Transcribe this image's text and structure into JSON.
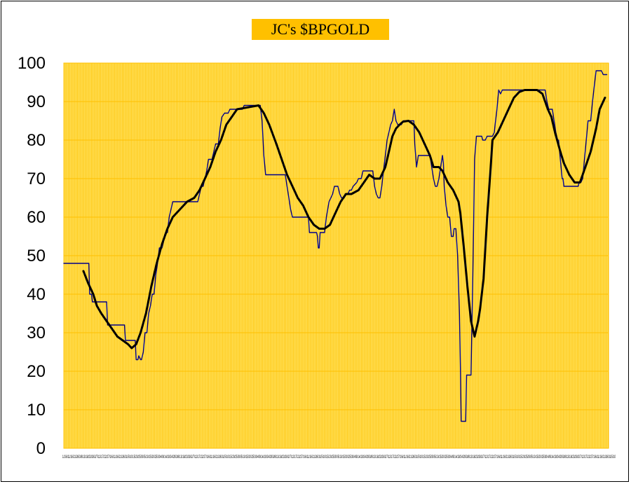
{
  "chart_data": {
    "type": "line",
    "title": "JC's $BPGOLD",
    "xlabel": "",
    "ylabel": "",
    "ylim": [
      0,
      100
    ],
    "yticks": [
      0,
      10,
      20,
      30,
      40,
      50,
      60,
      70,
      80,
      90,
      100
    ],
    "xticks_text": "1/1/6/11/16/21/26/3/8/13/18/23/28/2/7/12/17/22/27/1/6/11/16/21/26/31/5/10/15/20/25/30/5/10/15/20/25/30/4/9/14/19/24/29/3/8/13/18/23/28/2/7/12/17/22/27/1/6/11/16/21/26/31/5/10/15/20/25/30/5/10/15/20/25/30/4/9/14/19/24/29/3/8/13/18/23/28/2/7/12/17/22/27/1/6/11/16/21/26/31/5/10/15/20/25/30/5/10/15/20/25/30/4/9/14/19/24/29/3/8/13/18/23/28/2/7/12/17/22/27/1/6/11/16/21/26/31/5/10/15/20/25/30/5/10/15/20/25/30/4/9/14/19/24/29/3/8/13/18/23/28/2/7/12/17/22/27/1/6/11/16/21/26/31/5/10/15/20/25/30/5/10/15/20/25/30/4/9/14/19/24/29/3/8/13/18/23/28/2/7/12/17/22/27/1/6/11/16/21/26/31/5/10",
    "grid": true,
    "plot_background": "#ffe566",
    "grid_color": "#ffc000",
    "series": [
      {
        "color": "#00008b",
        "style": "thin",
        "points": [
          [
            0,
            48
          ],
          [
            28,
            48
          ],
          [
            29,
            40
          ],
          [
            31,
            40
          ],
          [
            32,
            38
          ],
          [
            48,
            38
          ],
          [
            49,
            32
          ],
          [
            68,
            32
          ],
          [
            69,
            28
          ],
          [
            80,
            28
          ],
          [
            81,
            23
          ],
          [
            83,
            23
          ],
          [
            84,
            24
          ],
          [
            86,
            23
          ],
          [
            87,
            23
          ],
          [
            89,
            25
          ],
          [
            91,
            30
          ],
          [
            93,
            30
          ],
          [
            95,
            35
          ],
          [
            97,
            37
          ],
          [
            99,
            40
          ],
          [
            101,
            40
          ],
          [
            103,
            45
          ],
          [
            105,
            48
          ],
          [
            107,
            52
          ],
          [
            110,
            52
          ],
          [
            112,
            54
          ],
          [
            114,
            56
          ],
          [
            116,
            56
          ],
          [
            118,
            60
          ],
          [
            120,
            62
          ],
          [
            122,
            64
          ],
          [
            146,
            64
          ],
          [
            150,
            64
          ],
          [
            152,
            66
          ],
          [
            154,
            68
          ],
          [
            156,
            68
          ],
          [
            158,
            70
          ],
          [
            160,
            72
          ],
          [
            162,
            75
          ],
          [
            166,
            75
          ],
          [
            168,
            77
          ],
          [
            170,
            79
          ],
          [
            173,
            79
          ],
          [
            175,
            83
          ],
          [
            177,
            86
          ],
          [
            180,
            87
          ],
          [
            184,
            87
          ],
          [
            186,
            88
          ],
          [
            200,
            88
          ],
          [
            202,
            89
          ],
          [
            220,
            89
          ],
          [
            222,
            85
          ],
          [
            224,
            76
          ],
          [
            226,
            71
          ],
          [
            248,
            71
          ],
          [
            250,
            68
          ],
          [
            252,
            65
          ],
          [
            254,
            62
          ],
          [
            256,
            60
          ],
          [
            274,
            60
          ],
          [
            275,
            56
          ],
          [
            283,
            56
          ],
          [
            284,
            55
          ],
          [
            285,
            52
          ],
          [
            286,
            52
          ],
          [
            287,
            56
          ],
          [
            292,
            56
          ],
          [
            294,
            60
          ],
          [
            297,
            64
          ],
          [
            299,
            65
          ],
          [
            301,
            66
          ],
          [
            303,
            68
          ],
          [
            307,
            68
          ],
          [
            309,
            66
          ],
          [
            311,
            65
          ],
          [
            314,
            65
          ],
          [
            315,
            66
          ],
          [
            318,
            66
          ],
          [
            320,
            67
          ],
          [
            322,
            67
          ],
          [
            324,
            68
          ],
          [
            328,
            69
          ],
          [
            330,
            70
          ],
          [
            333,
            70
          ],
          [
            335,
            72
          ],
          [
            346,
            72
          ],
          [
            348,
            68
          ],
          [
            350,
            66
          ],
          [
            352,
            65
          ],
          [
            354,
            65
          ],
          [
            356,
            68
          ],
          [
            358,
            72
          ],
          [
            360,
            76
          ],
          [
            362,
            80
          ],
          [
            364,
            82
          ],
          [
            366,
            84
          ],
          [
            368,
            85
          ],
          [
            370,
            88
          ],
          [
            372,
            85
          ],
          [
            374,
            84
          ],
          [
            378,
            84
          ],
          [
            380,
            85
          ],
          [
            392,
            85
          ],
          [
            393,
            79
          ],
          [
            395,
            73
          ],
          [
            397,
            76
          ],
          [
            410,
            76
          ],
          [
            412,
            73
          ],
          [
            414,
            70
          ],
          [
            416,
            68
          ],
          [
            418,
            68
          ],
          [
            420,
            70
          ],
          [
            422,
            73
          ],
          [
            424,
            76
          ],
          [
            425,
            74
          ],
          [
            426,
            68
          ],
          [
            428,
            63
          ],
          [
            430,
            60
          ],
          [
            432,
            60
          ],
          [
            434,
            55
          ],
          [
            436,
            55
          ],
          [
            437,
            57
          ],
          [
            439,
            57
          ],
          [
            441,
            50
          ],
          [
            443,
            35
          ],
          [
            444,
            22
          ],
          [
            445,
            7
          ],
          [
            450,
            7
          ],
          [
            451,
            19
          ],
          [
            456,
            19
          ],
          [
            458,
            45
          ],
          [
            459,
            60
          ],
          [
            460,
            75
          ],
          [
            462,
            81
          ],
          [
            468,
            81
          ],
          [
            469,
            80
          ],
          [
            472,
            80
          ],
          [
            474,
            81
          ],
          [
            480,
            81
          ],
          [
            482,
            82
          ],
          [
            483,
            84
          ],
          [
            485,
            88
          ],
          [
            487,
            93
          ],
          [
            489,
            92
          ],
          [
            491,
            93
          ],
          [
            539,
            93
          ],
          [
            541,
            90
          ],
          [
            543,
            88
          ],
          [
            547,
            88
          ],
          [
            549,
            85
          ],
          [
            551,
            82
          ],
          [
            553,
            80
          ],
          [
            554,
            80
          ],
          [
            556,
            75
          ],
          [
            558,
            70
          ],
          [
            559,
            70
          ],
          [
            560,
            68
          ],
          [
            576,
            68
          ],
          [
            577,
            69
          ],
          [
            579,
            69
          ],
          [
            581,
            70
          ],
          [
            583,
            75
          ],
          [
            585,
            80
          ],
          [
            587,
            85
          ],
          [
            590,
            85
          ],
          [
            592,
            90
          ],
          [
            594,
            94
          ],
          [
            596,
            98
          ],
          [
            602,
            98
          ],
          [
            604,
            97
          ],
          [
            608,
            97
          ]
        ]
      },
      {
        "color": "#000000",
        "style": "thick",
        "points": [
          [
            22,
            46
          ],
          [
            27,
            43
          ],
          [
            33,
            40
          ],
          [
            37,
            37
          ],
          [
            42,
            35
          ],
          [
            48,
            33
          ],
          [
            54,
            31
          ],
          [
            60,
            29
          ],
          [
            66,
            28
          ],
          [
            72,
            27
          ],
          [
            76,
            26
          ],
          [
            81,
            27
          ],
          [
            86,
            30
          ],
          [
            92,
            35
          ],
          [
            98,
            42
          ],
          [
            104,
            48
          ],
          [
            110,
            53
          ],
          [
            116,
            57
          ],
          [
            122,
            60
          ],
          [
            130,
            62
          ],
          [
            138,
            64
          ],
          [
            146,
            65
          ],
          [
            152,
            67
          ],
          [
            158,
            70
          ],
          [
            164,
            73
          ],
          [
            170,
            77
          ],
          [
            176,
            80
          ],
          [
            182,
            84
          ],
          [
            188,
            86
          ],
          [
            194,
            88
          ],
          [
            206,
            88.5
          ],
          [
            218,
            89
          ],
          [
            224,
            87
          ],
          [
            230,
            84
          ],
          [
            238,
            79
          ],
          [
            244,
            75
          ],
          [
            250,
            71
          ],
          [
            256,
            68
          ],
          [
            262,
            65
          ],
          [
            268,
            63
          ],
          [
            274,
            60
          ],
          [
            280,
            58
          ],
          [
            286,
            57
          ],
          [
            292,
            57
          ],
          [
            298,
            58
          ],
          [
            304,
            61
          ],
          [
            310,
            64
          ],
          [
            316,
            66
          ],
          [
            322,
            66
          ],
          [
            330,
            67
          ],
          [
            336,
            69
          ],
          [
            342,
            71
          ],
          [
            348,
            70
          ],
          [
            354,
            70
          ],
          [
            360,
            73
          ],
          [
            364,
            77
          ],
          [
            368,
            81
          ],
          [
            372,
            83
          ],
          [
            376,
            84
          ],
          [
            380,
            84.8
          ],
          [
            386,
            85
          ],
          [
            392,
            84
          ],
          [
            398,
            82
          ],
          [
            404,
            79
          ],
          [
            410,
            76
          ],
          [
            414,
            73
          ],
          [
            420,
            73
          ],
          [
            424,
            72
          ],
          [
            430,
            69
          ],
          [
            436,
            67
          ],
          [
            442,
            64
          ],
          [
            444,
            61
          ],
          [
            448,
            52
          ],
          [
            452,
            42
          ],
          [
            456,
            33
          ],
          [
            460,
            29
          ],
          [
            464,
            33
          ],
          [
            466,
            36
          ],
          [
            470,
            44
          ],
          [
            474,
            60
          ],
          [
            478,
            73
          ],
          [
            480,
            80
          ],
          [
            486,
            82
          ],
          [
            492,
            85
          ],
          [
            498,
            88
          ],
          [
            504,
            91
          ],
          [
            510,
            92.5
          ],
          [
            516,
            93
          ],
          [
            522,
            93
          ],
          [
            530,
            93
          ],
          [
            536,
            92
          ],
          [
            542,
            88
          ],
          [
            546,
            86
          ],
          [
            550,
            82
          ],
          [
            556,
            77
          ],
          [
            560,
            74
          ],
          [
            566,
            71
          ],
          [
            572,
            69
          ],
          [
            578,
            69
          ],
          [
            584,
            73
          ],
          [
            590,
            77
          ],
          [
            596,
            83
          ],
          [
            600,
            88
          ],
          [
            606,
            91
          ]
        ]
      }
    ]
  }
}
